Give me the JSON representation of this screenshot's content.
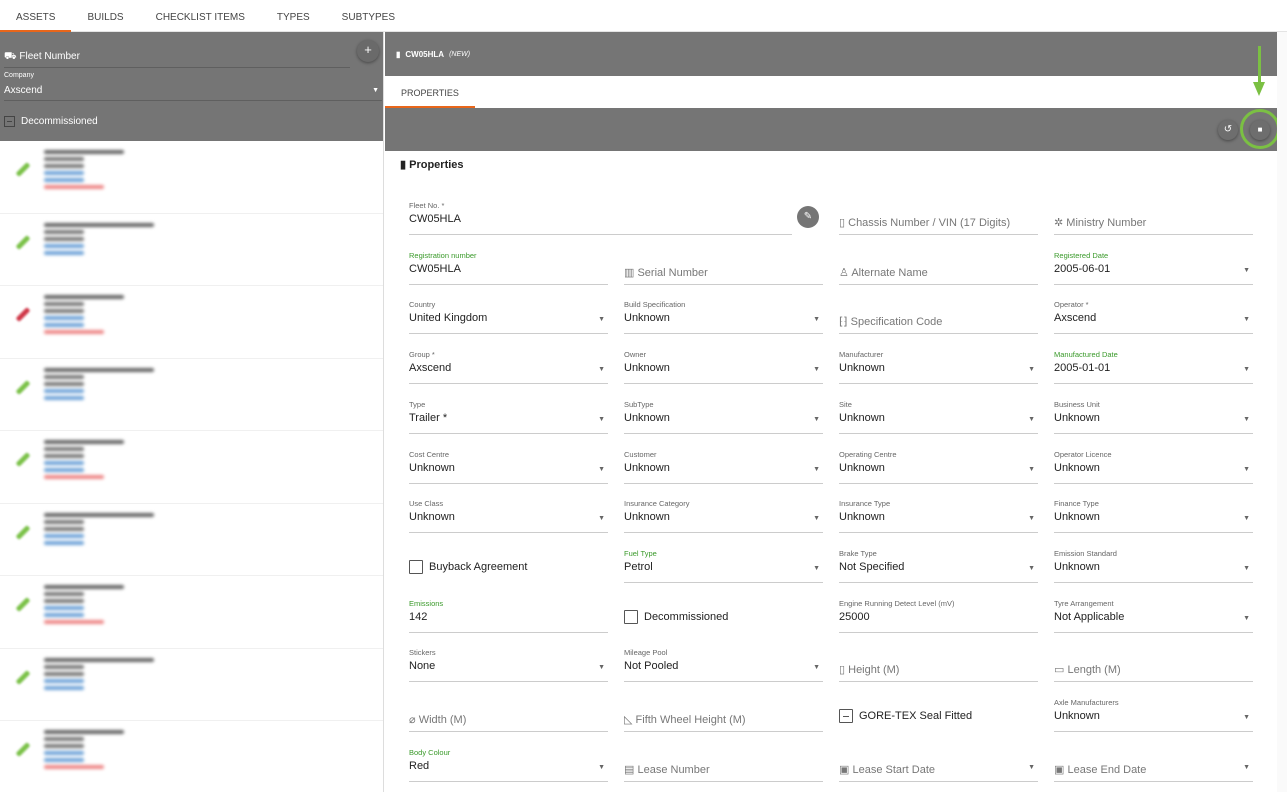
{
  "top_tabs": [
    {
      "label": "ASSETS",
      "active": true
    },
    {
      "label": "BUILDS"
    },
    {
      "label": "CHECKLIST ITEMS"
    },
    {
      "label": "TYPES"
    },
    {
      "label": "SUBTYPES"
    }
  ],
  "filter": {
    "fleet_placeholder": "Fleet Number",
    "add_icon": "+",
    "company_label": "Company",
    "company_value": "Axscend",
    "decommissioned_label": "Decommissioned"
  },
  "asset_list": [
    {
      "status_color": "#7cc24a"
    },
    {
      "status_color": "#7cc24a"
    },
    {
      "status_color": "#d0394a"
    },
    {
      "status_color": "#7cc24a"
    },
    {
      "status_color": "#7cc24a"
    },
    {
      "status_color": "#7cc24a"
    },
    {
      "status_color": "#7cc24a"
    },
    {
      "status_color": "#7cc24a"
    },
    {
      "status_color": "#7cc24a"
    }
  ],
  "detail": {
    "title": "CW05HLA",
    "badge": "(NEW)",
    "tab": "PROPERTIES",
    "undo_icon": "↺",
    "save_icon": "💾",
    "section": "Properties"
  },
  "colors": {
    "accent": "#e8661b",
    "highlight": "#7bc043",
    "label_green": "#3a9a2a",
    "header": "#757575"
  },
  "fields": [
    {
      "kind": "value",
      "label": "Fleet No. *",
      "value": "CW05HLA",
      "span": 2
    },
    {
      "kind": "placeholder",
      "placeholder": "Chassis Number / VIN (17 Digits)",
      "icon": "▯"
    },
    {
      "kind": "placeholder",
      "placeholder": "Ministry Number",
      "icon": "✲"
    },
    {
      "kind": "value",
      "label": "Registration number",
      "value": "CW05HLA",
      "green": true
    },
    {
      "kind": "placeholder",
      "placeholder": "Serial Number",
      "icon": "▥"
    },
    {
      "kind": "placeholder",
      "placeholder": "Alternate Name",
      "icon": "♙"
    },
    {
      "kind": "select",
      "label": "Registered Date",
      "value": "2005-06-01",
      "green": true
    },
    {
      "kind": "select",
      "label": "Country",
      "value": "United Kingdom"
    },
    {
      "kind": "select",
      "label": "Build Specification",
      "value": "Unknown"
    },
    {
      "kind": "placeholder",
      "placeholder": "Specification Code",
      "icon": "⁅⁆"
    },
    {
      "kind": "select",
      "label": "Operator *",
      "value": "Axscend"
    },
    {
      "kind": "select",
      "label": "Group *",
      "value": "Axscend"
    },
    {
      "kind": "select",
      "label": "Owner",
      "value": "Unknown"
    },
    {
      "kind": "select",
      "label": "Manufacturer",
      "value": "Unknown"
    },
    {
      "kind": "select",
      "label": "Manufactured Date",
      "value": "2005-01-01",
      "green": true
    },
    {
      "kind": "select",
      "label": "Type",
      "value": "Trailer *"
    },
    {
      "kind": "select",
      "label": "SubType",
      "value": "Unknown"
    },
    {
      "kind": "select",
      "label": "Site",
      "value": "Unknown"
    },
    {
      "kind": "select",
      "label": "Business Unit",
      "value": "Unknown"
    },
    {
      "kind": "select",
      "label": "Cost Centre",
      "value": "Unknown"
    },
    {
      "kind": "select",
      "label": "Customer",
      "value": "Unknown"
    },
    {
      "kind": "select",
      "label": "Operating Centre",
      "value": "Unknown"
    },
    {
      "kind": "select",
      "label": "Operator Licence",
      "value": "Unknown"
    },
    {
      "kind": "select",
      "label": "Use Class",
      "value": "Unknown"
    },
    {
      "kind": "select",
      "label": "Insurance Category",
      "value": "Unknown"
    },
    {
      "kind": "select",
      "label": "Insurance Type",
      "value": "Unknown"
    },
    {
      "kind": "select",
      "label": "Finance Type",
      "value": "Unknown"
    },
    {
      "kind": "checkbox",
      "label": "Buyback Agreement"
    },
    {
      "kind": "select",
      "label": "Fuel Type",
      "value": "Petrol",
      "green": true
    },
    {
      "kind": "select",
      "label": "Brake Type",
      "value": "Not Specified"
    },
    {
      "kind": "select",
      "label": "Emission Standard",
      "value": "Unknown"
    },
    {
      "kind": "value",
      "label": "Emissions",
      "value": "142",
      "green": true
    },
    {
      "kind": "checkbox",
      "label": "Decommissioned"
    },
    {
      "kind": "value",
      "label": "Engine Running Detect Level (mV)",
      "value": "25000"
    },
    {
      "kind": "select",
      "label": "Tyre Arrangement",
      "value": "Not Applicable"
    },
    {
      "kind": "select",
      "label": "Stickers",
      "value": "None"
    },
    {
      "kind": "select",
      "label": "Mileage Pool",
      "value": "Not Pooled"
    },
    {
      "kind": "placeholder",
      "placeholder": "Height (M)",
      "icon": "▯"
    },
    {
      "kind": "placeholder",
      "placeholder": "Length (M)",
      "icon": "▭"
    },
    {
      "kind": "placeholder",
      "placeholder": "Width (M)",
      "icon": "⌀"
    },
    {
      "kind": "placeholder",
      "placeholder": "Fifth Wheel Height (M)",
      "icon": "◺"
    },
    {
      "kind": "checkbox",
      "label": "GORE-TEX Seal Fitted",
      "indeterminate": true
    },
    {
      "kind": "select",
      "label": "Axle Manufacturers",
      "value": "Unknown"
    },
    {
      "kind": "select",
      "label": "Body Colour",
      "value": "Red",
      "green": true
    },
    {
      "kind": "placeholder",
      "placeholder": "Lease Number",
      "icon": "▤"
    },
    {
      "kind": "placeholder",
      "placeholder": "Lease Start Date",
      "icon": "▣",
      "dropdown": true
    },
    {
      "kind": "placeholder",
      "placeholder": "Lease End Date",
      "icon": "▣",
      "dropdown": true
    }
  ]
}
